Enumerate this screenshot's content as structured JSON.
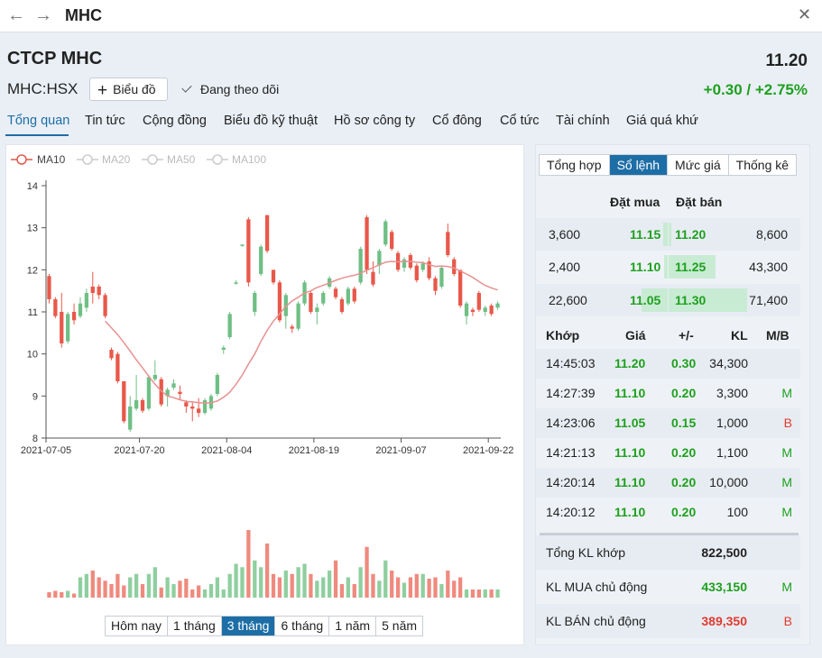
{
  "window": {
    "title": "MHC",
    "back_icon": "arrow-left-icon",
    "forward_icon": "arrow-right-icon",
    "close_icon": "close-icon"
  },
  "header": {
    "company": "CTCP MHC",
    "price": "11.20",
    "ticker": "MHC:HSX",
    "chart_button": "Biểu đồ",
    "follow_label": "Đang theo dõi",
    "change": "+0.30 / +2.75%"
  },
  "tabs": [
    "Tổng quan",
    "Tin tức",
    "Cộng đồng",
    "Biểu đồ kỹ thuật",
    "Hồ sơ công ty",
    "Cổ đông",
    "Cổ tức",
    "Tài chính",
    "Giá quá khứ"
  ],
  "chart": {
    "legend": [
      "MA10",
      "MA20",
      "MA50",
      "MA100"
    ],
    "range_buttons": [
      "Hôm nay",
      "1 tháng",
      "3 tháng",
      "6 tháng",
      "1 năm",
      "5 năm"
    ],
    "active_range": "3 tháng"
  },
  "chart_data": {
    "type": "candlestick",
    "x_ticks": [
      "2021-07-05",
      "2021-07-20",
      "2021-08-04",
      "2021-08-19",
      "2021-09-07",
      "2021-09-22"
    ],
    "y_ticks": [
      8,
      9,
      10,
      11,
      12,
      13,
      14
    ],
    "ylim": [
      8,
      14
    ],
    "legend": [
      "MA10",
      "MA20",
      "MA50",
      "MA100"
    ],
    "active_series": "MA10",
    "colors": {
      "up": "#6fbf85",
      "down": "#e8584a",
      "ma10": "#e89090"
    },
    "candles": [
      {
        "o": 11.85,
        "h": 11.9,
        "l": 11.2,
        "c": 11.3
      },
      {
        "o": 11.3,
        "h": 11.35,
        "l": 10.85,
        "c": 10.9
      },
      {
        "o": 11.0,
        "h": 11.45,
        "l": 10.15,
        "c": 10.25
      },
      {
        "o": 10.3,
        "h": 11.0,
        "l": 10.25,
        "c": 10.95
      },
      {
        "o": 11.0,
        "h": 11.2,
        "l": 10.7,
        "c": 10.8
      },
      {
        "o": 10.9,
        "h": 11.35,
        "l": 10.85,
        "c": 11.2
      },
      {
        "o": 11.1,
        "h": 11.55,
        "l": 11.0,
        "c": 11.45
      },
      {
        "o": 11.6,
        "h": 11.95,
        "l": 11.2,
        "c": 11.45
      },
      {
        "o": 11.6,
        "h": 11.65,
        "l": 11.3,
        "c": 11.4
      },
      {
        "o": 11.4,
        "h": 11.45,
        "l": 10.85,
        "c": 10.9
      },
      {
        "o": 10.1,
        "h": 10.15,
        "l": 9.85,
        "c": 9.9
      },
      {
        "o": 10.0,
        "h": 10.05,
        "l": 9.3,
        "c": 9.35
      },
      {
        "o": 9.35,
        "h": 9.35,
        "l": 8.35,
        "c": 8.4
      },
      {
        "o": 8.2,
        "h": 9.0,
        "l": 8.15,
        "c": 8.75
      },
      {
        "o": 8.7,
        "h": 9.5,
        "l": 8.65,
        "c": 8.9
      },
      {
        "o": 8.9,
        "h": 8.95,
        "l": 8.6,
        "c": 8.65
      },
      {
        "o": 8.7,
        "h": 9.5,
        "l": 8.65,
        "c": 9.45
      },
      {
        "o": 9.4,
        "h": 9.85,
        "l": 9.35,
        "c": 9.5
      },
      {
        "o": 9.4,
        "h": 9.45,
        "l": 8.75,
        "c": 8.8
      },
      {
        "o": 9.0,
        "h": 9.2,
        "l": 8.75,
        "c": 9.15
      },
      {
        "o": 9.2,
        "h": 9.4,
        "l": 9.15,
        "c": 9.3
      },
      {
        "o": 9.1,
        "h": 9.25,
        "l": 8.9,
        "c": 9.05
      },
      {
        "o": 8.85,
        "h": 8.9,
        "l": 8.6,
        "c": 8.75
      },
      {
        "o": 8.75,
        "h": 8.85,
        "l": 8.4,
        "c": 8.7
      },
      {
        "o": 8.7,
        "h": 8.95,
        "l": 8.5,
        "c": 8.6
      },
      {
        "o": 8.6,
        "h": 8.95,
        "l": 8.55,
        "c": 8.9
      },
      {
        "o": 8.7,
        "h": 9.05,
        "l": 8.65,
        "c": 9.0
      },
      {
        "o": 9.05,
        "h": 9.55,
        "l": 9.0,
        "c": 9.5
      },
      {
        "o": 10.1,
        "h": 10.2,
        "l": 10.0,
        "c": 10.15
      },
      {
        "o": 10.4,
        "h": 11.0,
        "l": 10.35,
        "c": 10.95
      },
      {
        "o": 11.7,
        "h": 11.75,
        "l": 11.65,
        "c": 11.7
      },
      {
        "o": 12.6,
        "h": 12.6,
        "l": 12.55,
        "c": 12.6
      },
      {
        "o": 13.2,
        "h": 13.25,
        "l": 11.6,
        "c": 11.7
      },
      {
        "o": 11.0,
        "h": 11.5,
        "l": 10.9,
        "c": 11.45
      },
      {
        "o": 11.9,
        "h": 12.6,
        "l": 11.85,
        "c": 12.55
      },
      {
        "o": 13.3,
        "h": 13.3,
        "l": 12.4,
        "c": 12.45
      },
      {
        "o": 12.0,
        "h": 12.0,
        "l": 11.65,
        "c": 11.7
      },
      {
        "o": 11.7,
        "h": 11.75,
        "l": 10.75,
        "c": 10.8
      },
      {
        "o": 10.9,
        "h": 11.45,
        "l": 10.6,
        "c": 11.4
      },
      {
        "o": 10.65,
        "h": 10.7,
        "l": 10.5,
        "c": 10.6
      },
      {
        "o": 10.6,
        "h": 11.25,
        "l": 10.55,
        "c": 11.2
      },
      {
        "o": 11.2,
        "h": 11.75,
        "l": 11.15,
        "c": 11.7
      },
      {
        "o": 11.45,
        "h": 11.5,
        "l": 10.95,
        "c": 11.0
      },
      {
        "o": 11.0,
        "h": 11.2,
        "l": 10.7,
        "c": 11.1
      },
      {
        "o": 11.2,
        "h": 11.5,
        "l": 11.15,
        "c": 11.45
      },
      {
        "o": 11.6,
        "h": 11.85,
        "l": 11.55,
        "c": 11.8
      },
      {
        "o": 11.55,
        "h": 11.6,
        "l": 11.3,
        "c": 11.35
      },
      {
        "o": 11.3,
        "h": 11.35,
        "l": 10.95,
        "c": 11.0
      },
      {
        "o": 11.2,
        "h": 11.6,
        "l": 11.15,
        "c": 11.55
      },
      {
        "o": 11.55,
        "h": 11.6,
        "l": 11.2,
        "c": 11.25
      },
      {
        "o": 11.7,
        "h": 12.55,
        "l": 11.65,
        "c": 12.5
      },
      {
        "o": 13.25,
        "h": 13.3,
        "l": 11.9,
        "c": 12.0
      },
      {
        "o": 11.95,
        "h": 12.2,
        "l": 11.6,
        "c": 11.65
      },
      {
        "o": 12.1,
        "h": 12.5,
        "l": 11.9,
        "c": 12.45
      },
      {
        "o": 12.6,
        "h": 13.2,
        "l": 12.55,
        "c": 13.15
      },
      {
        "o": 12.9,
        "h": 12.95,
        "l": 12.45,
        "c": 12.5
      },
      {
        "o": 12.4,
        "h": 12.45,
        "l": 11.95,
        "c": 12.0
      },
      {
        "o": 12.05,
        "h": 12.3,
        "l": 11.95,
        "c": 12.25
      },
      {
        "o": 12.35,
        "h": 12.4,
        "l": 12.0,
        "c": 12.05
      },
      {
        "o": 12.1,
        "h": 12.15,
        "l": 11.7,
        "c": 11.75
      },
      {
        "o": 12.0,
        "h": 12.2,
        "l": 11.95,
        "c": 12.15
      },
      {
        "o": 12.2,
        "h": 12.3,
        "l": 11.75,
        "c": 11.8
      },
      {
        "o": 11.8,
        "h": 11.85,
        "l": 11.4,
        "c": 11.5
      },
      {
        "o": 11.6,
        "h": 12.1,
        "l": 11.55,
        "c": 12.05
      },
      {
        "o": 12.9,
        "h": 13.1,
        "l": 12.3,
        "c": 12.35
      },
      {
        "o": 12.25,
        "h": 12.3,
        "l": 11.85,
        "c": 11.9
      },
      {
        "o": 12.0,
        "h": 12.0,
        "l": 11.1,
        "c": 11.15
      },
      {
        "o": 10.9,
        "h": 11.25,
        "l": 10.7,
        "c": 11.2
      },
      {
        "o": 11.05,
        "h": 11.1,
        "l": 10.9,
        "c": 11.0
      },
      {
        "o": 11.45,
        "h": 11.5,
        "l": 11.0,
        "c": 11.05
      },
      {
        "o": 11.0,
        "h": 11.15,
        "l": 10.9,
        "c": 11.1
      },
      {
        "o": 11.15,
        "h": 11.2,
        "l": 10.9,
        "c": 10.95
      },
      {
        "o": 11.1,
        "h": 11.25,
        "l": 11.05,
        "c": 11.2
      }
    ],
    "ma10": [
      null,
      null,
      null,
      null,
      null,
      null,
      null,
      null,
      null,
      10.78,
      10.62,
      10.46,
      10.27,
      10.07,
      9.86,
      9.67,
      9.47,
      9.28,
      9.12,
      9.0,
      8.96,
      8.91,
      8.87,
      8.86,
      8.84,
      8.83,
      8.84,
      8.88,
      8.97,
      9.09,
      9.28,
      9.5,
      9.76,
      10.0,
      10.3,
      10.56,
      10.78,
      10.95,
      11.13,
      11.26,
      11.35,
      11.45,
      11.5,
      11.58,
      11.63,
      11.69,
      11.75,
      11.8,
      11.84,
      11.87,
      11.92,
      11.99,
      12.05,
      12.12,
      12.18,
      12.2,
      12.19,
      12.2,
      12.2,
      12.18,
      12.17,
      12.12,
      12.08,
      12.09,
      12.08,
      12.04,
      11.97,
      11.9,
      11.82,
      11.72,
      11.63,
      11.57,
      11.52
    ]
  },
  "order_book": {
    "tabs": [
      "Tổng hợp",
      "Sổ lệnh",
      "Mức giá",
      "Thống kê"
    ],
    "active_tab": "Sổ lệnh",
    "headers": {
      "buy": "Đặt mua",
      "sell": "Đặt bán"
    },
    "rows": [
      {
        "buy_vol": "3,600",
        "buy_price": "11.15",
        "sell_price": "11.20",
        "sell_vol": "8,600",
        "buy_fill": 0.06,
        "sell_fill": 0.04
      },
      {
        "buy_vol": "2,400",
        "buy_price": "11.10",
        "sell_price": "11.25",
        "sell_vol": "43,300",
        "buy_fill": 0.04,
        "sell_fill": 0.6
      },
      {
        "buy_vol": "22,600",
        "buy_price": "11.05",
        "sell_price": "11.30",
        "sell_vol": "71,400",
        "buy_fill": 0.32,
        "sell_fill": 1.0
      }
    ]
  },
  "trades": {
    "headers": [
      "Khớp",
      "Giá",
      "+/-",
      "KL",
      "M/B"
    ],
    "rows": [
      {
        "time": "14:45:03",
        "price": "11.20",
        "change": "0.30",
        "vol": "34,300",
        "side": ""
      },
      {
        "time": "14:27:39",
        "price": "11.10",
        "change": "0.20",
        "vol": "3,300",
        "side": "M"
      },
      {
        "time": "14:23:06",
        "price": "11.05",
        "change": "0.15",
        "vol": "1,000",
        "side": "B"
      },
      {
        "time": "14:21:13",
        "price": "11.10",
        "change": "0.20",
        "vol": "1,100",
        "side": "M"
      },
      {
        "time": "14:20:14",
        "price": "11.10",
        "change": "0.20",
        "vol": "10,000",
        "side": "M"
      },
      {
        "time": "14:20:12",
        "price": "11.10",
        "change": "0.20",
        "vol": "100",
        "side": "M"
      }
    ]
  },
  "summary": [
    {
      "label": "Tổng KL khớp",
      "value": "822,500",
      "side": ""
    },
    {
      "label": "KL MUA chủ động",
      "value": "433,150",
      "side": "M"
    },
    {
      "label": "KL BÁN chủ động",
      "value": "389,350",
      "side": "B"
    }
  ]
}
